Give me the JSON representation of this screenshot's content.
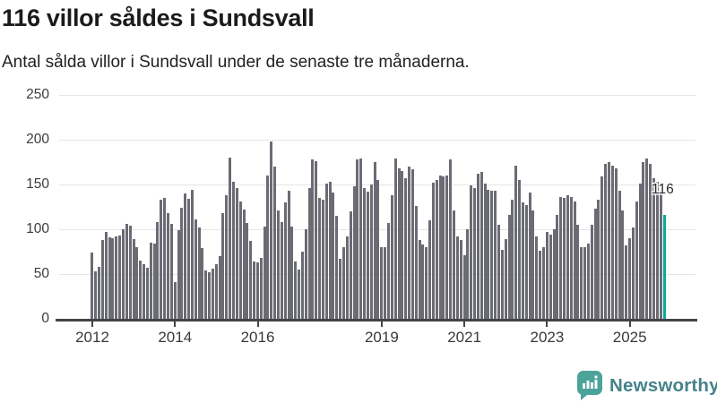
{
  "header": {
    "title": "116 villor såldes i Sundsvall",
    "subtitle": "Antal sålda villor i Sundsvall under de senaste tre månaderna."
  },
  "chart_data": {
    "type": "bar",
    "title": "116 villor såldes i Sundsvall",
    "xlabel": "",
    "ylabel": "",
    "unit": "antal sålda villor (rullande tre månader)",
    "start_month": "2012-01",
    "end_month": "2025-11",
    "frequency": "monthly",
    "ylim": [
      0,
      250
    ],
    "y_ticks": [
      0,
      50,
      100,
      150,
      200,
      250
    ],
    "x_ticks": [
      {
        "label": "2012",
        "month_index": 0
      },
      {
        "label": "2014",
        "month_index": 24
      },
      {
        "label": "2016",
        "month_index": 48
      },
      {
        "label": "2019",
        "month_index": 84
      },
      {
        "label": "2021",
        "month_index": 108
      },
      {
        "label": "2023",
        "month_index": 132
      },
      {
        "label": "2025",
        "month_index": 156
      }
    ],
    "grid": true,
    "bar_color": "#6b6b74",
    "values": [
      74,
      53,
      58,
      88,
      97,
      91,
      90,
      92,
      93,
      100,
      106,
      104,
      89,
      80,
      65,
      61,
      57,
      85,
      84,
      108,
      133,
      135,
      118,
      106,
      41,
      99,
      124,
      140,
      134,
      144,
      111,
      102,
      79,
      54,
      52,
      56,
      61,
      70,
      118,
      138,
      180,
      153,
      146,
      131,
      122,
      107,
      87,
      64,
      63,
      68,
      103,
      160,
      198,
      170,
      121,
      108,
      130,
      143,
      103,
      64,
      55,
      75,
      100,
      146,
      178,
      176,
      135,
      133,
      151,
      153,
      141,
      115,
      67,
      80,
      92,
      120,
      148,
      178,
      179,
      146,
      142,
      150,
      175,
      155,
      80,
      80,
      107,
      138,
      179,
      168,
      165,
      157,
      170,
      167,
      126,
      88,
      83,
      80,
      110,
      152,
      155,
      160,
      159,
      160,
      178,
      121,
      92,
      88,
      71,
      100,
      149,
      146,
      162,
      164,
      151,
      144,
      143,
      143,
      105,
      77,
      89,
      116,
      133,
      171,
      155,
      130,
      127,
      141,
      121,
      92,
      76,
      80,
      97,
      94,
      100,
      116,
      136,
      135,
      138,
      136,
      131,
      105,
      80,
      80,
      84,
      105,
      123,
      133,
      159,
      173,
      175,
      171,
      168,
      143,
      121,
      82,
      90,
      102,
      131,
      151,
      175,
      179,
      173,
      157,
      153,
      142,
      116
    ],
    "highlight": {
      "index": 166,
      "value": 116,
      "label": "116",
      "color": "#0aa8a4"
    },
    "legend": null
  },
  "footer": {
    "brand": "Newsworthy",
    "logo_color": "#4ba39a",
    "text_color": "#45838a"
  }
}
